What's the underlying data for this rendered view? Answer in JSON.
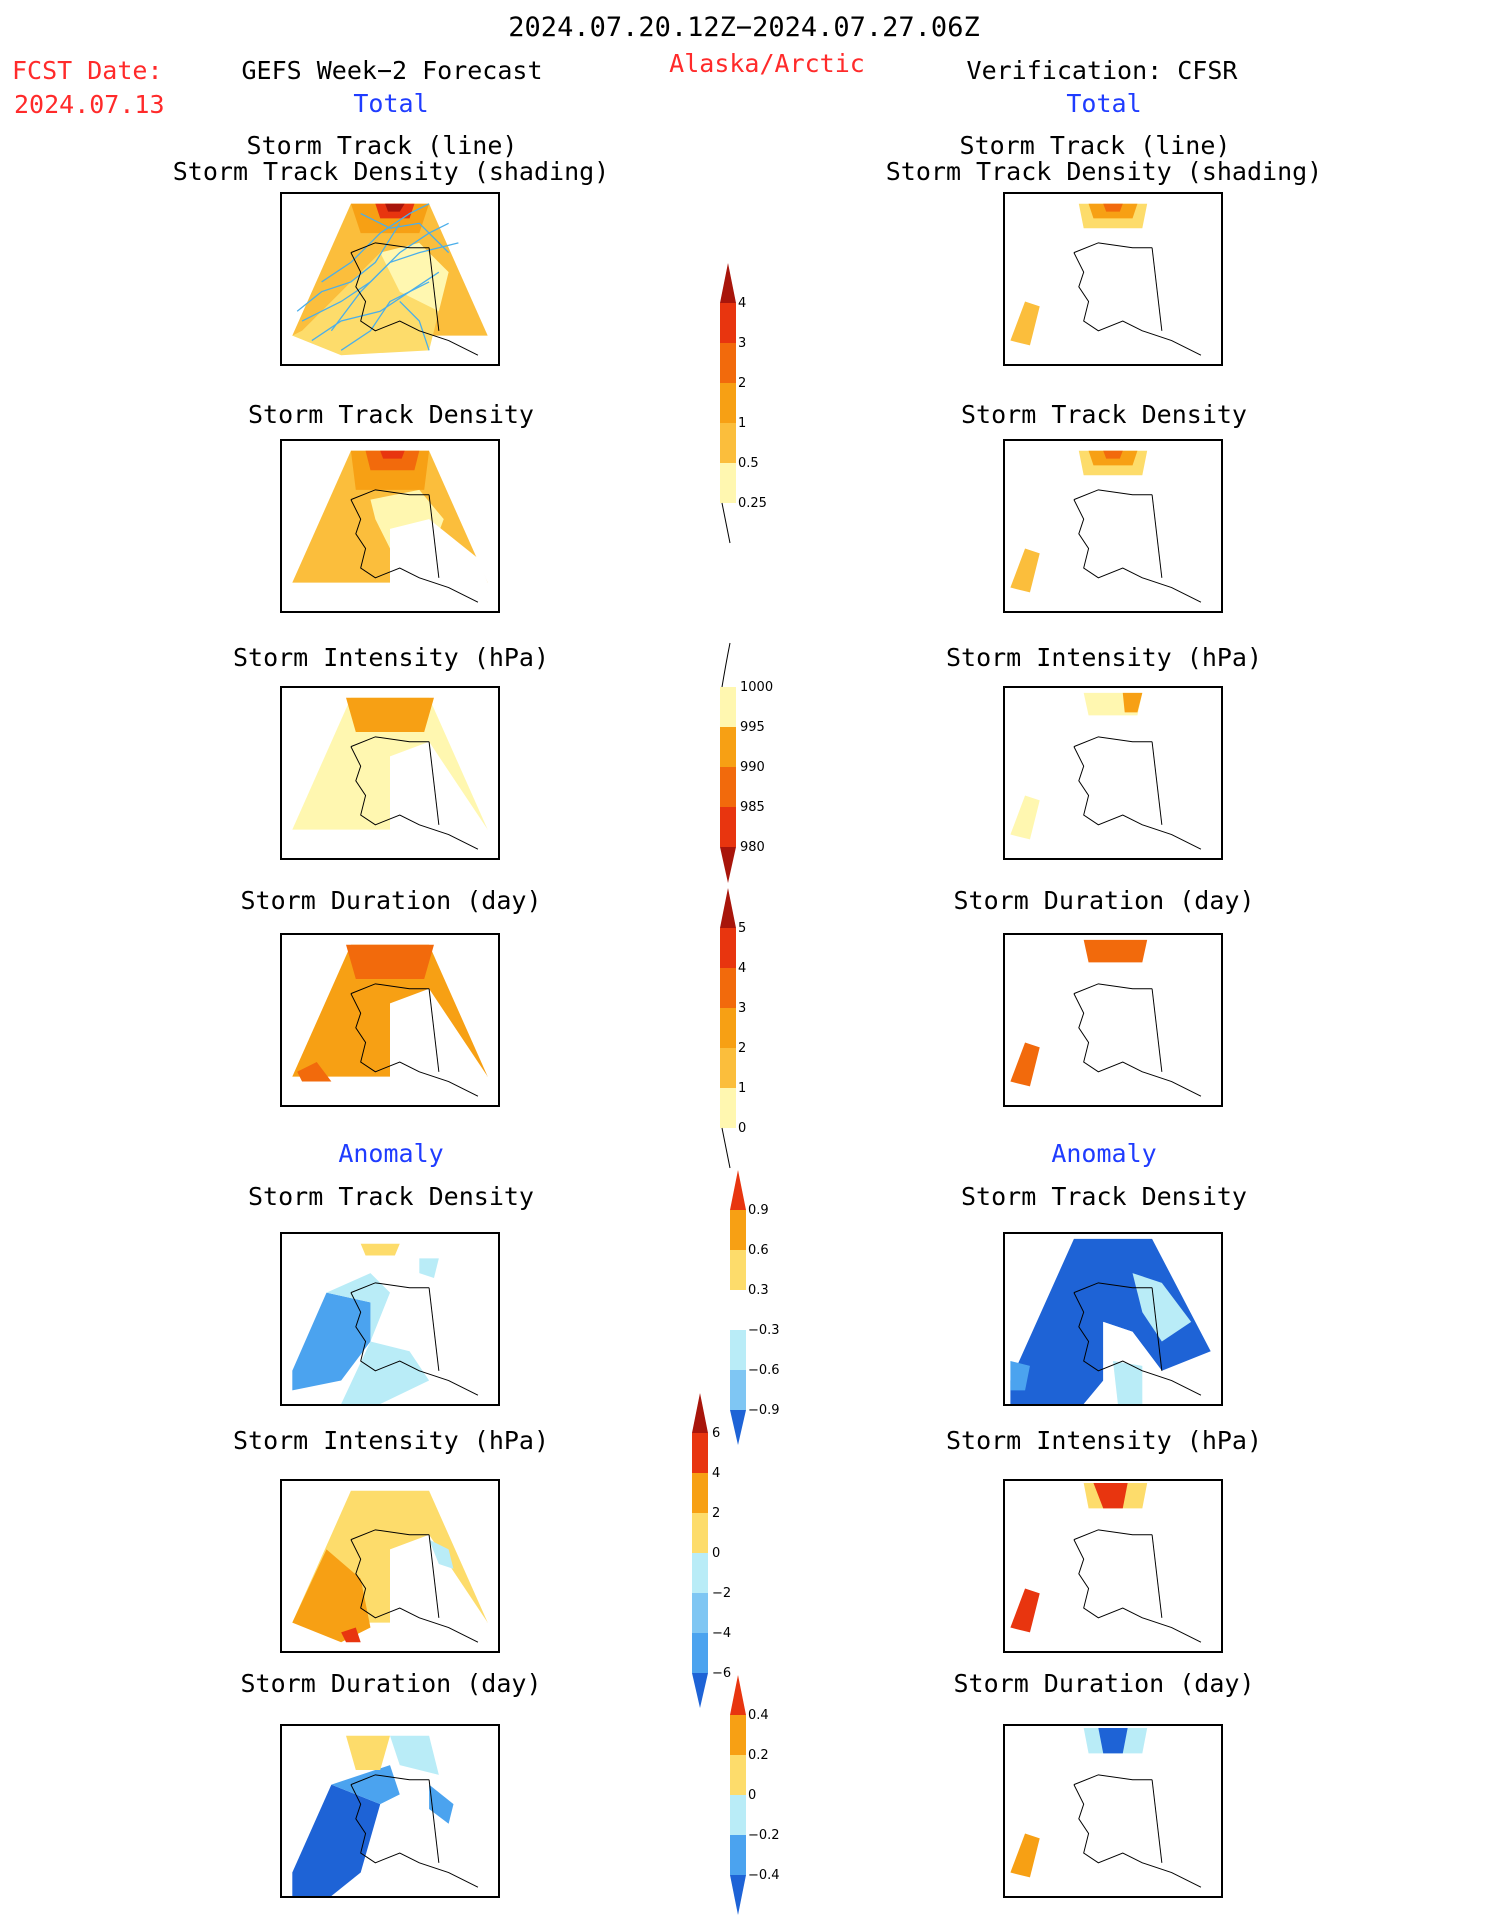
{
  "header": {
    "date_range": "2024.07.20.12Z−2024.07.27.06Z",
    "fcst_label": "FCST Date:",
    "fcst_date": "2024.07.13",
    "left_title": "GEFS Week−2 Forecast",
    "region": "Alaska/Arctic",
    "right_title": "Verification: CFSR",
    "left_total": "Total",
    "right_total": "Total"
  },
  "titles": {
    "track_line": "Storm Track (line)",
    "track_shading": "Storm Track Density (shading)",
    "density": "Storm Track Density",
    "intensity": "Storm Intensity (hPa)",
    "duration": "Storm Duration (day)",
    "anomaly": "Anomaly"
  },
  "colorbars": {
    "density_total": [
      "4",
      "3",
      "2",
      "1",
      "0.5",
      "0.25"
    ],
    "intensity_total": [
      "1000",
      "995",
      "990",
      "985",
      "980"
    ],
    "duration_total": [
      "5",
      "4",
      "3",
      "2",
      "1",
      "0"
    ],
    "density_anom": [
      "0.9",
      "0.6",
      "0.3",
      "−0.3",
      "−0.6",
      "−0.9"
    ],
    "intensity_anom": [
      "6",
      "4",
      "2",
      "0",
      "−2",
      "−4",
      "−6"
    ],
    "duration_anom": [
      "0.4",
      "0.2",
      "0",
      "−0.2",
      "−0.4"
    ]
  },
  "colors": {
    "pale_yellow": "#fff7b0",
    "yellow": "#fddc6b",
    "light_orange": "#fbbe3c",
    "orange": "#f7a014",
    "dark_orange": "#f26a0c",
    "red": "#e8350f",
    "dark_red": "#a8150b",
    "light_blue": "#b9ecf7",
    "mid_blue": "#7fc6f3",
    "blue": "#4ba3ef",
    "dark_blue": "#1e63d6",
    "track_line": "#4aaeea"
  }
}
